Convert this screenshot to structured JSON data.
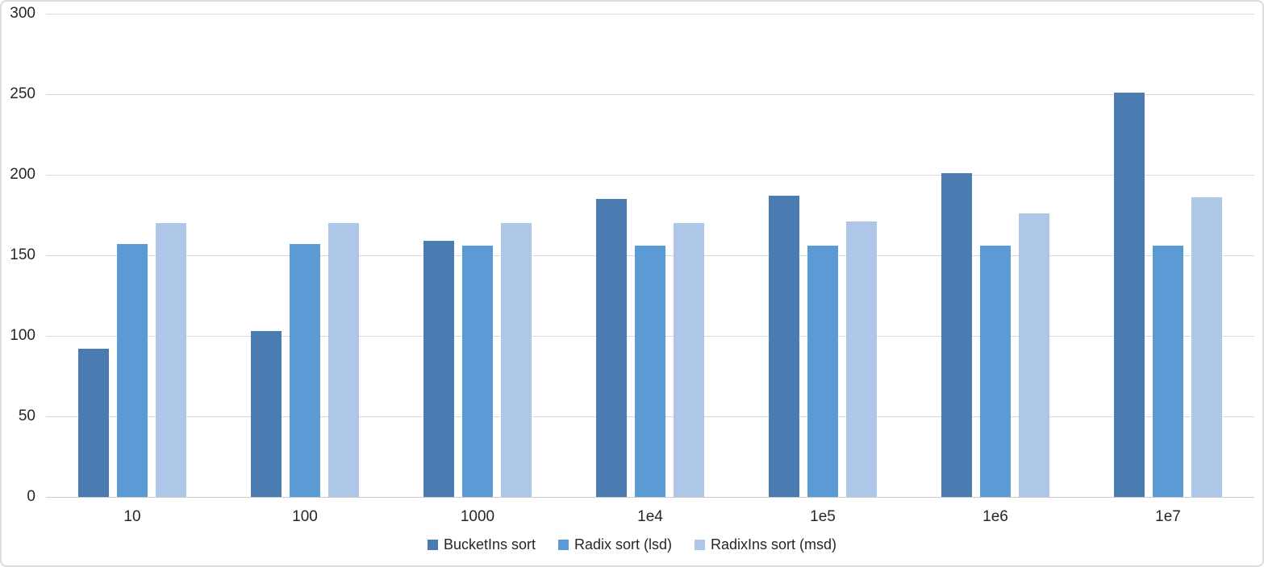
{
  "chart_data": {
    "type": "bar",
    "title": "",
    "categories": [
      "10",
      "100",
      "1000",
      "1e4",
      "1e5",
      "1e6",
      "1e7"
    ],
    "series": [
      {
        "name": "BucketIns sort",
        "color": "#4a7cb2",
        "values": [
          92,
          103,
          159,
          185,
          187,
          201,
          251
        ]
      },
      {
        "name": "Radix sort (lsd)",
        "color": "#5b9bd5",
        "values": [
          157,
          157,
          156,
          156,
          156,
          156,
          156
        ]
      },
      {
        "name": "RadixIns sort (msd)",
        "color": "#aec6e8",
        "values": [
          170,
          170,
          170,
          170,
          171,
          176,
          186
        ]
      }
    ],
    "xlabel": "",
    "ylabel": "",
    "ylim": [
      0,
      300
    ],
    "yticks": [
      0,
      50,
      100,
      150,
      200,
      250,
      300
    ],
    "grid": true,
    "legend_position": "bottom",
    "colors": {
      "gridline": "#d9d9d9",
      "axis_line": "#c9c9c9",
      "tick_label": "#262626",
      "background": "#ffffff",
      "frame_border": "#dcdcdc"
    }
  }
}
